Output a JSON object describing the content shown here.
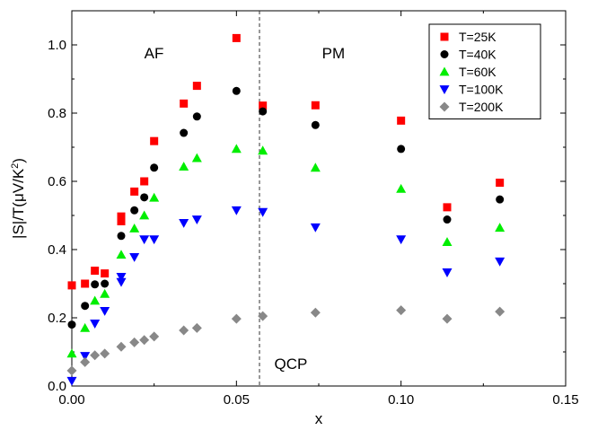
{
  "chart_data": {
    "type": "scatter",
    "title": "",
    "xlabel": "x",
    "ylabel_parts": {
      "a": "|S|/T(",
      "mu": "μ",
      "b": "V/K",
      "sup": "2",
      "c": ")"
    },
    "xlim": [
      0,
      0.15
    ],
    "ylim": [
      0,
      1.1
    ],
    "x_ticks": [
      0.0,
      0.05,
      0.1,
      0.15
    ],
    "x_tick_labels": [
      "0.00",
      "0.05",
      "0.10",
      "0.15"
    ],
    "y_ticks": [
      0.0,
      0.2,
      0.4,
      0.6,
      0.8,
      1.0
    ],
    "y_tick_labels": [
      "0.0",
      "0.2",
      "0.4",
      "0.6",
      "0.8",
      "1.0"
    ],
    "grid": false,
    "legend_position": "top-right",
    "annotations": {
      "af": {
        "text": "AF",
        "x": 0.022,
        "y": 0.96
      },
      "pm": {
        "text": "PM",
        "x": 0.076,
        "y": 0.96
      },
      "qcp": {
        "text": "QCP",
        "x": 0.0615,
        "y": 0.05
      }
    },
    "qcp_line_x": 0.057,
    "series": [
      {
        "name": "T=25K",
        "marker": "square",
        "color": "#ff0000",
        "points": [
          [
            0.0,
            0.295
          ],
          [
            0.004,
            0.3
          ],
          [
            0.007,
            0.338
          ],
          [
            0.01,
            0.33
          ],
          [
            0.015,
            0.497
          ],
          [
            0.015,
            0.483
          ],
          [
            0.019,
            0.57
          ],
          [
            0.022,
            0.6
          ],
          [
            0.025,
            0.718
          ],
          [
            0.034,
            0.828
          ],
          [
            0.038,
            0.88
          ],
          [
            0.05,
            1.02
          ],
          [
            0.058,
            0.822
          ],
          [
            0.074,
            0.823
          ],
          [
            0.1,
            0.778
          ],
          [
            0.114,
            0.524
          ],
          [
            0.13,
            0.596
          ]
        ]
      },
      {
        "name": "T=40K",
        "marker": "circle",
        "color": "#000000",
        "points": [
          [
            0.0,
            0.18
          ],
          [
            0.004,
            0.235
          ],
          [
            0.007,
            0.298
          ],
          [
            0.01,
            0.3
          ],
          [
            0.015,
            0.44
          ],
          [
            0.019,
            0.515
          ],
          [
            0.022,
            0.553
          ],
          [
            0.025,
            0.64
          ],
          [
            0.034,
            0.742
          ],
          [
            0.038,
            0.79
          ],
          [
            0.05,
            0.865
          ],
          [
            0.058,
            0.805
          ],
          [
            0.074,
            0.765
          ],
          [
            0.1,
            0.695
          ],
          [
            0.114,
            0.488
          ],
          [
            0.13,
            0.547
          ]
        ]
      },
      {
        "name": "T=60K",
        "marker": "triangle-up",
        "color": "#00ee00",
        "points": [
          [
            0.0,
            0.095
          ],
          [
            0.004,
            0.17
          ],
          [
            0.007,
            0.25
          ],
          [
            0.01,
            0.27
          ],
          [
            0.015,
            0.385
          ],
          [
            0.019,
            0.462
          ],
          [
            0.022,
            0.5
          ],
          [
            0.025,
            0.552
          ],
          [
            0.034,
            0.643
          ],
          [
            0.038,
            0.668
          ],
          [
            0.05,
            0.695
          ],
          [
            0.058,
            0.69
          ],
          [
            0.074,
            0.64
          ],
          [
            0.1,
            0.578
          ],
          [
            0.114,
            0.422
          ],
          [
            0.13,
            0.464
          ]
        ]
      },
      {
        "name": "T=100K",
        "marker": "triangle-down",
        "color": "#0000ff",
        "points": [
          [
            0.0,
            0.015
          ],
          [
            0.004,
            0.088
          ],
          [
            0.007,
            0.183
          ],
          [
            0.01,
            0.22
          ],
          [
            0.015,
            0.32
          ],
          [
            0.015,
            0.305
          ],
          [
            0.019,
            0.378
          ],
          [
            0.022,
            0.43
          ],
          [
            0.025,
            0.43
          ],
          [
            0.034,
            0.478
          ],
          [
            0.038,
            0.488
          ],
          [
            0.05,
            0.515
          ],
          [
            0.058,
            0.51
          ],
          [
            0.074,
            0.465
          ],
          [
            0.1,
            0.43
          ],
          [
            0.114,
            0.333
          ],
          [
            0.13,
            0.365
          ]
        ]
      },
      {
        "name": "T=200K",
        "marker": "diamond",
        "color": "#888888",
        "points": [
          [
            0.0,
            0.045
          ],
          [
            0.004,
            0.07
          ],
          [
            0.007,
            0.09
          ],
          [
            0.01,
            0.095
          ],
          [
            0.015,
            0.115
          ],
          [
            0.019,
            0.128
          ],
          [
            0.022,
            0.135
          ],
          [
            0.025,
            0.145
          ],
          [
            0.034,
            0.163
          ],
          [
            0.038,
            0.17
          ],
          [
            0.05,
            0.197
          ],
          [
            0.058,
            0.205
          ],
          [
            0.074,
            0.215
          ],
          [
            0.1,
            0.222
          ],
          [
            0.114,
            0.197
          ],
          [
            0.13,
            0.218
          ]
        ]
      }
    ]
  }
}
